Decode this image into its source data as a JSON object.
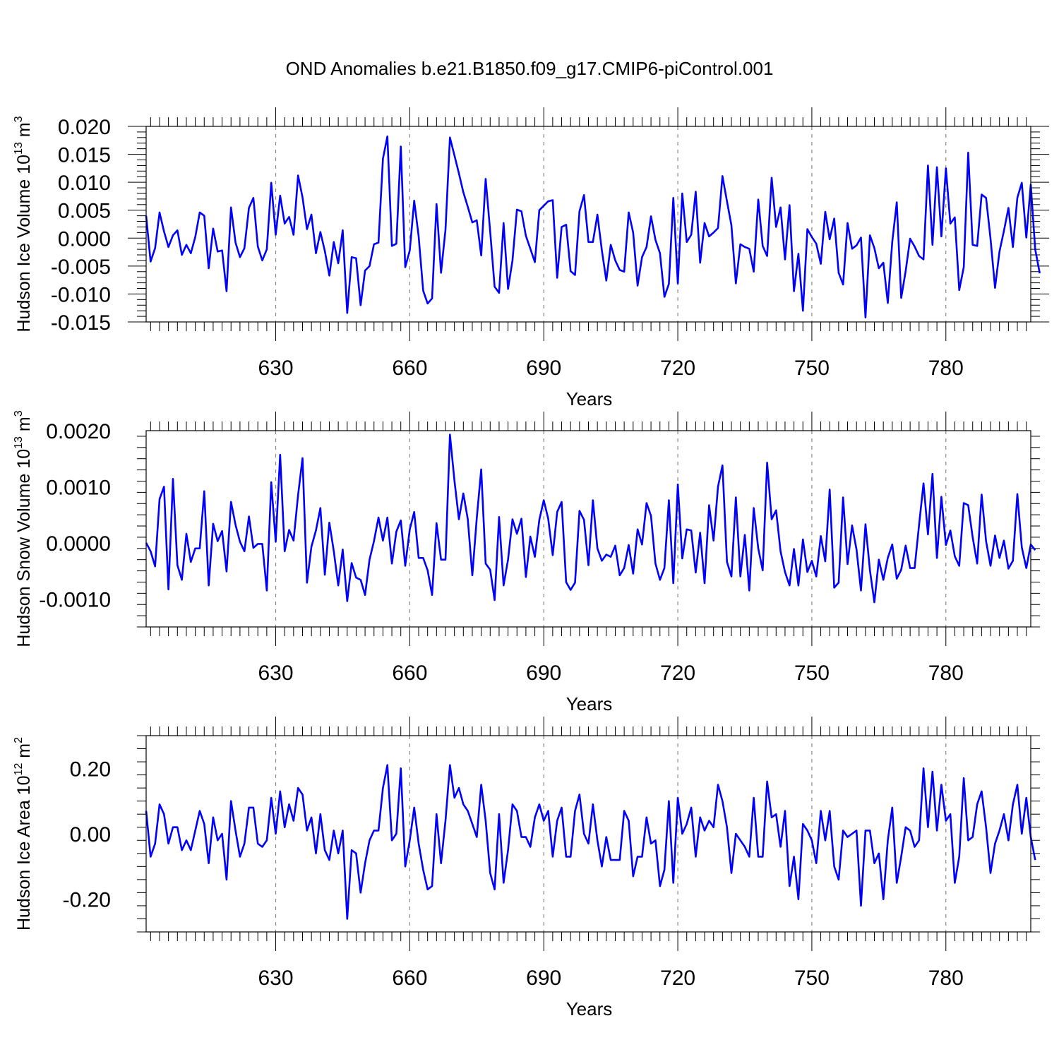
{
  "chart_data": {
    "title": "OND Anomalies b.e21.B1850.f09_g17.CMIP6-piControl.001",
    "type": "line",
    "line_color": "#0000ff",
    "xlim": [
      601,
      799
    ],
    "xticks": [
      630,
      660,
      690,
      720,
      750,
      780
    ],
    "xtick_labels": [
      "630",
      "660",
      "690",
      "720",
      "750",
      "780"
    ],
    "start_year": 601,
    "panels": [
      {
        "name": "ice-volume",
        "ylabel_main": "Hudson Ice Volume 10",
        "ylabel_exp": "13",
        "ylabel_unit": " m",
        "ylabel_unit_exp": "3",
        "xlabel": "Years",
        "ylim": [
          -0.015,
          0.02
        ],
        "yticks": [
          -0.015,
          -0.01,
          -0.005,
          0.0,
          0.005,
          0.01,
          0.015,
          0.02
        ],
        "ytick_labels": [
          "-0.015",
          "-0.010",
          "-0.005",
          "0.000",
          "0.005",
          "0.010",
          "0.015",
          "0.020"
        ],
        "series": [
          {
            "name": "Hudson Ice Volume",
            "values": [
              0.004,
              -0.0042,
              -0.0018,
              0.0046,
              0.0012,
              -0.0016,
              0.0005,
              0.0014,
              -0.003,
              -0.0012,
              -0.0027,
              0.0002,
              0.0046,
              0.004,
              -0.0054,
              0.0017,
              -0.0024,
              -0.0022,
              -0.0095,
              0.0055,
              -0.0008,
              -0.0034,
              -0.0018,
              0.0054,
              0.0072,
              -0.0015,
              -0.004,
              -0.002,
              0.0099,
              0.0006,
              0.0076,
              0.0026,
              0.0038,
              0.0006,
              0.0112,
              0.0073,
              0.0016,
              0.0042,
              -0.0027,
              0.0011,
              -0.0023,
              -0.0067,
              -0.0007,
              -0.0045,
              0.0014,
              -0.0134,
              -0.0034,
              -0.0036,
              -0.012,
              -0.0058,
              -0.005,
              -0.0011,
              -0.0008,
              0.0142,
              0.0182,
              -0.0014,
              -0.001,
              0.0164,
              -0.0052,
              -0.0022,
              0.0067,
              0.0003,
              -0.0094,
              -0.0117,
              -0.0108,
              0.0061,
              -0.0062,
              0.0015,
              0.018,
              0.0148,
              0.0116,
              0.0082,
              0.0056,
              0.0028,
              0.0032,
              -0.0031,
              0.0106,
              0.0012,
              -0.0087,
              -0.0098,
              0.0027,
              -0.0091,
              -0.004,
              0.0051,
              0.0048,
              0.0004,
              -0.0019,
              -0.0043,
              0.005,
              0.0058,
              0.0066,
              0.0068,
              -0.0071,
              0.002,
              0.0024,
              -0.0059,
              -0.0066,
              0.0048,
              0.0077,
              -0.0007,
              -0.0007,
              0.0042,
              -0.0022,
              -0.0076,
              -0.0012,
              -0.004,
              -0.0057,
              -0.006,
              0.0046,
              0.001,
              -0.0085,
              -0.0034,
              -0.0016,
              0.0039,
              -0.0003,
              -0.0027,
              -0.0105,
              -0.0082,
              0.0072,
              -0.0081,
              0.008,
              -0.0007,
              0.0006,
              0.0083,
              -0.0044,
              0.0027,
              0.0003,
              0.001,
              0.0018,
              0.0111,
              0.0066,
              0.0023,
              -0.0081,
              -0.0011,
              -0.0016,
              -0.0019,
              -0.006,
              0.0069,
              -0.0014,
              -0.0032,
              0.0108,
              0.002,
              0.0055,
              -0.0038,
              0.0059,
              -0.0095,
              -0.0028,
              -0.013,
              0.0016,
              0.0002,
              -0.001,
              -0.0046,
              0.0047,
              -0.0002,
              0.0035,
              -0.0062,
              -0.0083,
              0.0027,
              -0.0019,
              -0.0013,
              0.0001,
              -0.0142,
              0.0005,
              -0.0018,
              -0.0054,
              -0.0044,
              -0.0116,
              -0.0007,
              0.0064,
              -0.0107,
              -0.0059,
              -0.0001,
              -0.0015,
              -0.0032,
              -0.0038,
              0.013,
              -0.0012,
              0.0127,
              0.0003,
              0.0125,
              0.0026,
              0.0037,
              -0.0093,
              -0.0052,
              0.0153,
              -0.0012,
              -0.0014,
              0.0078,
              0.0072,
              -0.0001,
              -0.0089,
              -0.0024,
              0.0013,
              0.0054,
              -0.0016,
              0.0072,
              0.0099,
              0.0001,
              0.0096,
              -0.002,
              -0.0063
            ]
          }
        ]
      },
      {
        "name": "snow-volume",
        "ylabel_main": "Hudson Snow Volume 10",
        "ylabel_exp": "13",
        "ylabel_unit": " m",
        "ylabel_unit_exp": "3",
        "xlabel": "Years",
        "ylim": [
          -0.0015,
          0.002
        ],
        "yticks": [
          -0.001,
          0.0,
          0.001,
          0.002
        ],
        "ytick_labels": [
          "-0.0010",
          "0.0000",
          "0.0010",
          "0.0020"
        ],
        "series": [
          {
            "name": "Hudson Snow Volume",
            "values": [
              0.0,
              -0.00015,
              -0.00042,
              0.00078,
              0.001,
              -0.00083,
              0.00114,
              -0.0004,
              -0.00066,
              0.00016,
              -0.00034,
              -0.0001,
              -0.0001,
              0.00092,
              -0.00076,
              0.00034,
              3e-05,
              0.00021,
              -0.00051,
              0.00073,
              0.00032,
              2e-05,
              -0.00015,
              0.00047,
              -9e-05,
              -2e-05,
              -2e-05,
              -0.00085,
              0.00108,
              2e-05,
              0.00157,
              -0.00015,
              0.00023,
              4e-05,
              0.00085,
              0.00151,
              -0.00071,
              -7e-05,
              0.00022,
              0.00062,
              -0.00057,
              0.00036,
              -0.00015,
              -0.00076,
              -0.00012,
              -0.00104,
              -0.00036,
              -0.00062,
              -0.00066,
              -0.00093,
              -0.0003,
              3e-05,
              0.00045,
              4e-05,
              0.00045,
              -0.00037,
              0.0002,
              0.0004,
              -0.00041,
              0.00024,
              0.00055,
              -0.00027,
              -0.00027,
              -0.00049,
              -0.00093,
              0.00035,
              -0.0003,
              -0.0003,
              0.00193,
              0.00111,
              0.00042,
              0.00088,
              0.00042,
              -0.00058,
              0.00044,
              0.00131,
              -0.00037,
              -0.00048,
              -0.00102,
              0.00046,
              -0.00076,
              -0.0003,
              0.00042,
              0.00016,
              0.00043,
              -0.00061,
              0.00011,
              -0.00025,
              0.00041,
              0.00076,
              0.00043,
              -0.00022,
              0.00055,
              0.00073,
              -0.0007,
              -0.00084,
              -0.00071,
              0.00057,
              0.00041,
              -0.0004,
              0.00076,
              -0.0001,
              -0.00032,
              -0.00021,
              -0.00025,
              -5e-05,
              -0.00058,
              -0.00045,
              -4e-05,
              -0.00055,
              0.00024,
              -3e-05,
              0.00071,
              0.00048,
              -0.00037,
              -0.00066,
              -0.00045,
              0.00076,
              -0.00072,
              0.00104,
              -0.00028,
              0.00024,
              0.00022,
              -0.00053,
              0.00018,
              -0.00072,
              0.00067,
              4e-05,
              0.001,
              0.00138,
              -0.00034,
              -0.0006,
              0.00081,
              -0.0006,
              0.00014,
              -0.00085,
              0.00062,
              -0.0001,
              -0.00049,
              0.00143,
              0.00042,
              0.00058,
              -0.00015,
              -0.00052,
              -0.00076,
              -0.00011,
              -0.00076,
              6e-05,
              -0.00052,
              -0.00032,
              -0.0006,
              0.00012,
              -0.00033,
              0.00095,
              -0.0008,
              -0.00071,
              0.00081,
              -0.00038,
              0.00031,
              -0.00012,
              -0.00085,
              0.00033,
              -0.00049,
              -0.00106,
              -0.0003,
              -0.00066,
              -0.00027,
              -3e-05,
              -0.00064,
              -0.00048,
              -5e-05,
              -0.00045,
              -0.00045,
              0.00032,
              0.00106,
              0.00015,
              0.00123,
              -0.00027,
              0.00082,
              -4e-05,
              0.00022,
              -0.00024,
              -0.00041,
              0.00071,
              0.00067,
              0.0001,
              -0.00037,
              0.00086,
              3e-05,
              -0.00041,
              0.00013,
              -0.00027,
              4e-05,
              -0.00046,
              -0.00032,
              0.00087,
              -8e-05,
              -0.00045,
              -3e-05,
              -0.00013
            ]
          }
        ]
      },
      {
        "name": "ice-area",
        "ylabel_main": "Hudson Ice Area 10",
        "ylabel_exp": "12",
        "ylabel_unit": " m",
        "ylabel_unit_exp": "2",
        "xlabel": "Years",
        "ylim": [
          -0.3,
          0.3
        ],
        "yticks": [
          -0.2,
          0.0,
          0.2
        ],
        "ytick_labels": [
          "-0.20",
          "0.00",
          "0.20"
        ],
        "series": [
          {
            "name": "Hudson Ice Area",
            "values": [
              0.07,
              -0.07,
              -0.03,
              0.09,
              0.06,
              -0.03,
              0.02,
              0.02,
              -0.05,
              -0.02,
              -0.05,
              0.01,
              0.07,
              0.03,
              -0.09,
              0.05,
              -0.02,
              0.0,
              -0.14,
              0.1,
              0.01,
              -0.07,
              -0.03,
              0.08,
              0.08,
              -0.03,
              -0.04,
              -0.02,
              0.11,
              0.0,
              0.13,
              0.02,
              0.09,
              0.04,
              0.14,
              0.12,
              0.01,
              0.05,
              -0.06,
              0.06,
              -0.05,
              -0.08,
              0.01,
              -0.06,
              0.01,
              -0.26,
              -0.05,
              -0.06,
              -0.18,
              -0.09,
              -0.02,
              0.01,
              0.01,
              0.14,
              0.21,
              -0.02,
              0.0,
              0.2,
              -0.1,
              -0.02,
              0.08,
              -0.03,
              -0.11,
              -0.17,
              -0.16,
              0.06,
              -0.09,
              0.04,
              0.21,
              0.11,
              0.14,
              0.09,
              0.07,
              0.03,
              -0.01,
              0.15,
              0.04,
              -0.12,
              -0.17,
              0.06,
              -0.15,
              -0.05,
              0.09,
              0.07,
              -0.01,
              -0.01,
              -0.04,
              0.05,
              0.09,
              0.04,
              0.07,
              -0.07,
              0.04,
              0.08,
              -0.07,
              -0.07,
              0.07,
              0.12,
              0.0,
              -0.03,
              0.09,
              -0.02,
              -0.1,
              -0.01,
              -0.08,
              -0.08,
              -0.08,
              0.07,
              0.04,
              -0.13,
              -0.07,
              -0.07,
              0.05,
              -0.03,
              -0.02,
              -0.16,
              -0.11,
              0.1,
              -0.15,
              0.11,
              0.0,
              0.03,
              0.08,
              -0.07,
              0.05,
              0.01,
              0.04,
              0.02,
              0.15,
              0.1,
              0.02,
              -0.12,
              0.0,
              -0.02,
              -0.04,
              -0.07,
              0.11,
              -0.07,
              -0.07,
              0.16,
              0.05,
              0.06,
              -0.04,
              0.07,
              -0.16,
              -0.07,
              -0.2,
              0.03,
              0.01,
              -0.02,
              -0.09,
              0.07,
              -0.02,
              0.07,
              -0.1,
              -0.14,
              0.01,
              -0.01,
              0.0,
              0.01,
              -0.22,
              0.01,
              0.01,
              -0.09,
              -0.06,
              -0.2,
              -0.02,
              0.08,
              -0.15,
              -0.07,
              0.02,
              0.01,
              -0.04,
              -0.02,
              0.2,
              0.02,
              0.19,
              0.01,
              0.15,
              0.04,
              0.06,
              -0.15,
              -0.07,
              0.17,
              -0.02,
              -0.01,
              0.09,
              0.13,
              0.02,
              -0.12,
              -0.03,
              0.01,
              0.06,
              -0.02,
              0.09,
              0.15,
              0.0,
              0.11,
              -0.01,
              -0.08
            ]
          }
        ]
      }
    ]
  }
}
